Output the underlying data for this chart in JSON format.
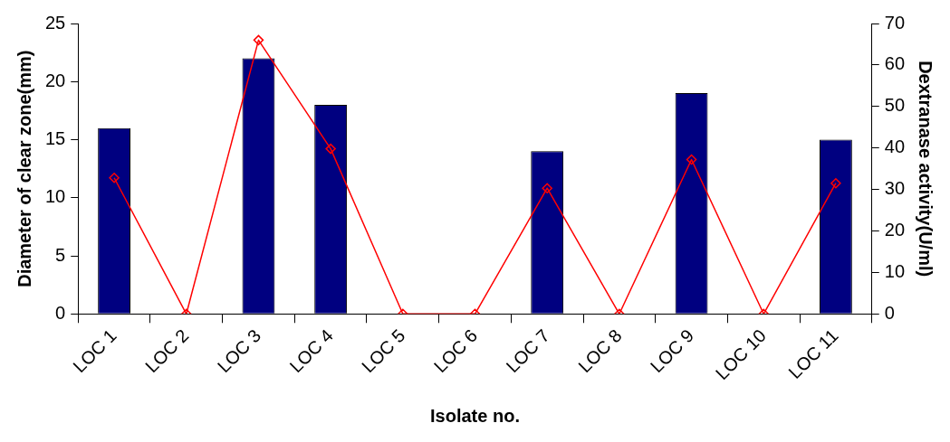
{
  "chart_data": {
    "type": "bar",
    "xlabel": "Isolate no.",
    "ylabel": "Diameter of clear zone(mm)",
    "y2label": "Dextranase activity(U/ml)",
    "categories": [
      "LOC 1",
      "LOC 2",
      "LOC 3",
      "LOC 4",
      "LOC 5",
      "LOC 6",
      "LOC 7",
      "LOC 8",
      "LOC 9",
      "LOC 10",
      "LOC 11"
    ],
    "series": [
      {
        "color": "#000080",
        "values": [
          16,
          0,
          22,
          18,
          0,
          0,
          14,
          0,
          19,
          0,
          15
        ]
      },
      {
        "type": "line",
        "axis": "y2",
        "color": "#ff0000",
        "marker": "diamond",
        "values": [
          32.8,
          0,
          66,
          39.8,
          0,
          0,
          30.3,
          0,
          37.2,
          0,
          31.5
        ]
      }
    ],
    "ylim": [
      0,
      25
    ],
    "yticks": [
      0,
      5,
      10,
      15,
      20,
      25
    ],
    "y2lim": [
      0,
      70
    ],
    "y2ticks": [
      0,
      10,
      20,
      30,
      40,
      50,
      60,
      70
    ],
    "grid": false,
    "legend": false
  }
}
